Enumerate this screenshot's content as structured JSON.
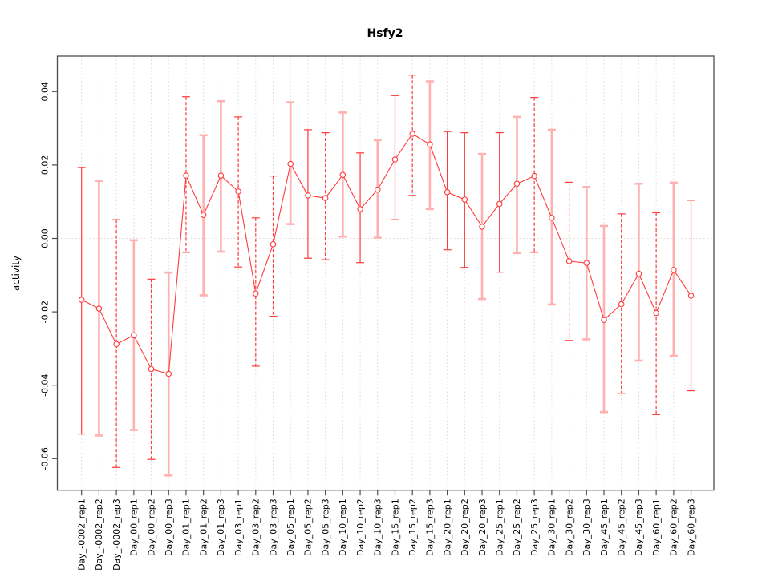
{
  "page": {
    "background": "#ffffff"
  },
  "chart_data": {
    "type": "line",
    "subtype": "points-with-error-bars",
    "title": "Hsfy2",
    "ylabel": "activity",
    "xlabel": "",
    "legend": "none",
    "grid": "vertical dotted gridline at every category; horizontal dotted line at y=0",
    "ylim": [
      -0.0686,
      0.0497
    ],
    "yticks": [
      {
        "v": 0.04,
        "label": "0.04"
      },
      {
        "v": 0.02,
        "label": "0.02"
      },
      {
        "v": 0.0,
        "label": "0.00"
      },
      {
        "v": -0.02,
        "label": "-0.02"
      },
      {
        "v": -0.04,
        "label": "-0.04"
      },
      {
        "v": -0.06,
        "label": "-0.06"
      }
    ],
    "zero_line": 0,
    "colors": {
      "series_red": "#ff3b3b",
      "light_red": "#ffb0b0",
      "grid": "#d9d9d9",
      "zero_line": "#e0d6d6",
      "axis": "#4d4d4d",
      "text": "#000000"
    },
    "points": [
      {
        "label": "Day_-0002_rep1",
        "y": -0.0167,
        "hi": 0.0193,
        "lo": -0.0533,
        "style": "solid"
      },
      {
        "label": "Day_-0002_rep2",
        "y": -0.0191,
        "hi": 0.0157,
        "lo": -0.0537,
        "style": "light"
      },
      {
        "label": "Day_-0002_rep3",
        "y": -0.0288,
        "hi": 0.0051,
        "lo": -0.0624,
        "style": "dashed"
      },
      {
        "label": "Day_00_rep1",
        "y": -0.0264,
        "hi": -0.0005,
        "lo": -0.0522,
        "style": "light"
      },
      {
        "label": "Day_00_rep2",
        "y": -0.0356,
        "hi": -0.0111,
        "lo": -0.0602,
        "style": "dashed"
      },
      {
        "label": "Day_00_rep3",
        "y": -0.0369,
        "hi": -0.0093,
        "lo": -0.0646,
        "style": "light"
      },
      {
        "label": "Day_01_rep1",
        "y": 0.0171,
        "hi": 0.0386,
        "lo": -0.0038,
        "style": "dashed"
      },
      {
        "label": "Day_01_rep2",
        "y": 0.0064,
        "hi": 0.0281,
        "lo": -0.0155,
        "style": "light"
      },
      {
        "label": "Day_01_rep3",
        "y": 0.0171,
        "hi": 0.0374,
        "lo": -0.0036,
        "style": "light"
      },
      {
        "label": "Day_03_rep1",
        "y": 0.0128,
        "hi": 0.0331,
        "lo": -0.0078,
        "style": "dashed"
      },
      {
        "label": "Day_03_rep2",
        "y": -0.015,
        "hi": 0.0056,
        "lo": -0.0348,
        "style": "dashed"
      },
      {
        "label": "Day_03_rep3",
        "y": -0.0016,
        "hi": 0.017,
        "lo": -0.0212,
        "style": "dashed"
      },
      {
        "label": "Day_05_rep1",
        "y": 0.0203,
        "hi": 0.0371,
        "lo": 0.0039,
        "style": "light"
      },
      {
        "label": "Day_05_rep2",
        "y": 0.0117,
        "hi": 0.0296,
        "lo": -0.0054,
        "style": "solid"
      },
      {
        "label": "Day_05_rep3",
        "y": 0.011,
        "hi": 0.0288,
        "lo": -0.0058,
        "style": "dashed"
      },
      {
        "label": "Day_10_rep1",
        "y": 0.0173,
        "hi": 0.0343,
        "lo": 0.0005,
        "style": "light"
      },
      {
        "label": "Day_10_rep2",
        "y": 0.008,
        "hi": 0.0233,
        "lo": -0.0066,
        "style": "solid"
      },
      {
        "label": "Day_10_rep3",
        "y": 0.0133,
        "hi": 0.0268,
        "lo": 0.0002,
        "style": "light"
      },
      {
        "label": "Day_15_rep1",
        "y": 0.0215,
        "hi": 0.0389,
        "lo": 0.0051,
        "style": "solid"
      },
      {
        "label": "Day_15_rep2",
        "y": 0.0285,
        "hi": 0.0445,
        "lo": 0.0117,
        "style": "dashed"
      },
      {
        "label": "Day_15_rep3",
        "y": 0.0256,
        "hi": 0.0428,
        "lo": 0.008,
        "style": "light"
      },
      {
        "label": "Day_20_rep1",
        "y": 0.0126,
        "hi": 0.0291,
        "lo": -0.0031,
        "style": "solid"
      },
      {
        "label": "Day_20_rep2",
        "y": 0.0106,
        "hi": 0.0288,
        "lo": -0.0079,
        "style": "solid"
      },
      {
        "label": "Day_20_rep3",
        "y": 0.0032,
        "hi": 0.023,
        "lo": -0.0165,
        "style": "light"
      },
      {
        "label": "Day_25_rep1",
        "y": 0.0094,
        "hi": 0.0288,
        "lo": -0.0092,
        "style": "solid"
      },
      {
        "label": "Day_25_rep2",
        "y": 0.0149,
        "hi": 0.0331,
        "lo": -0.004,
        "style": "light"
      },
      {
        "label": "Day_25_rep3",
        "y": 0.017,
        "hi": 0.0384,
        "lo": -0.0038,
        "style": "dashed"
      },
      {
        "label": "Day_30_rep1",
        "y": 0.0056,
        "hi": 0.0296,
        "lo": -0.018,
        "style": "light"
      },
      {
        "label": "Day_30_rep2",
        "y": -0.0062,
        "hi": 0.0153,
        "lo": -0.0278,
        "style": "dashed"
      },
      {
        "label": "Day_30_rep3",
        "y": -0.0067,
        "hi": 0.014,
        "lo": -0.0275,
        "style": "light"
      },
      {
        "label": "Day_45_rep1",
        "y": -0.0222,
        "hi": 0.0034,
        "lo": -0.0473,
        "style": "light"
      },
      {
        "label": "Day_45_rep2",
        "y": -0.0179,
        "hi": 0.0067,
        "lo": -0.0422,
        "style": "dashed"
      },
      {
        "label": "Day_45_rep3",
        "y": -0.0096,
        "hi": 0.0149,
        "lo": -0.0333,
        "style": "light"
      },
      {
        "label": "Day_60_rep1",
        "y": -0.0203,
        "hi": 0.007,
        "lo": -0.048,
        "style": "dashed"
      },
      {
        "label": "Day_60_rep2",
        "y": -0.0086,
        "hi": 0.0152,
        "lo": -0.032,
        "style": "light"
      },
      {
        "label": "Day_60_rep3",
        "y": -0.0156,
        "hi": 0.0104,
        "lo": -0.0415,
        "style": "solid"
      }
    ]
  }
}
